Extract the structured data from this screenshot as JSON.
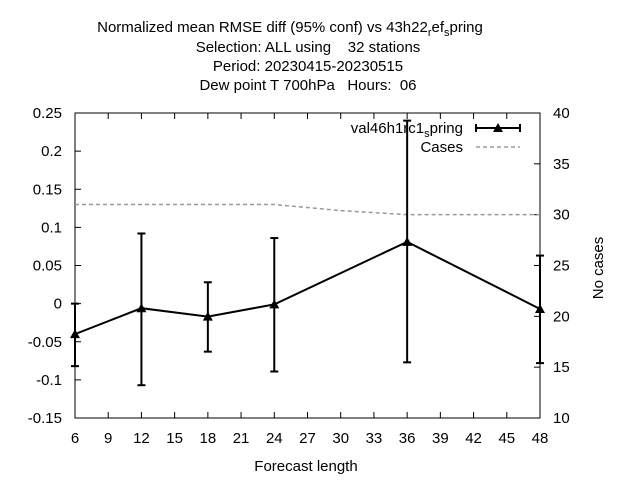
{
  "chart_data": {
    "type": "line",
    "title_lines": [
      "Normalized mean RMSE diff (95% conf) vs 43h22",
      "Selection: ALL using    32 stations",
      "Period: 20230415-20230515",
      "Dew point T 700hPa   Hours:  06"
    ],
    "title_sub_1": "r",
    "title_mid_1": "ef",
    "title_sub_2": "s",
    "title_tail_1": "pring",
    "xlabel": "Forecast length",
    "ylabel": "",
    "y2label": "No cases",
    "xlim": [
      6,
      48
    ],
    "ylim": [
      -0.15,
      0.25
    ],
    "y2lim": [
      10,
      40
    ],
    "x_ticks": [
      "6",
      "9",
      "12",
      "15",
      "18",
      "21",
      "24",
      "27",
      "30",
      "33",
      "36",
      "39",
      "42",
      "45",
      "48"
    ],
    "y_ticks": [
      "-0.15",
      "-0.1",
      "-0.05",
      "0",
      "0.05",
      "0.1",
      "0.15",
      "0.2",
      "0.25"
    ],
    "y2_ticks": [
      "10",
      "15",
      "20",
      "25",
      "30",
      "35",
      "40"
    ],
    "legend_position": "top-right",
    "series": [
      {
        "name_main": "val46h1rc1",
        "name_sub": "s",
        "name_tail": "pring",
        "color": "#000000",
        "marker": "triangle",
        "x": [
          6,
          12,
          18,
          24,
          36,
          48
        ],
        "values": [
          -0.04,
          -0.006,
          -0.017,
          -0.001,
          0.081,
          -0.007
        ],
        "err_low": [
          -0.082,
          -0.107,
          -0.063,
          -0.089,
          -0.077,
          -0.078
        ],
        "err_high": [
          0.0,
          0.092,
          0.028,
          0.086,
          0.24,
          0.063
        ]
      },
      {
        "name": "Cases",
        "color": "#999999",
        "axis": "y2",
        "dashed": true,
        "x": [
          6,
          12,
          18,
          24,
          27,
          30,
          33,
          36,
          39,
          42,
          45,
          48
        ],
        "values": [
          31,
          31,
          31,
          31,
          30.7,
          30.4,
          30.2,
          30,
          30,
          30,
          30,
          30
        ]
      }
    ]
  }
}
